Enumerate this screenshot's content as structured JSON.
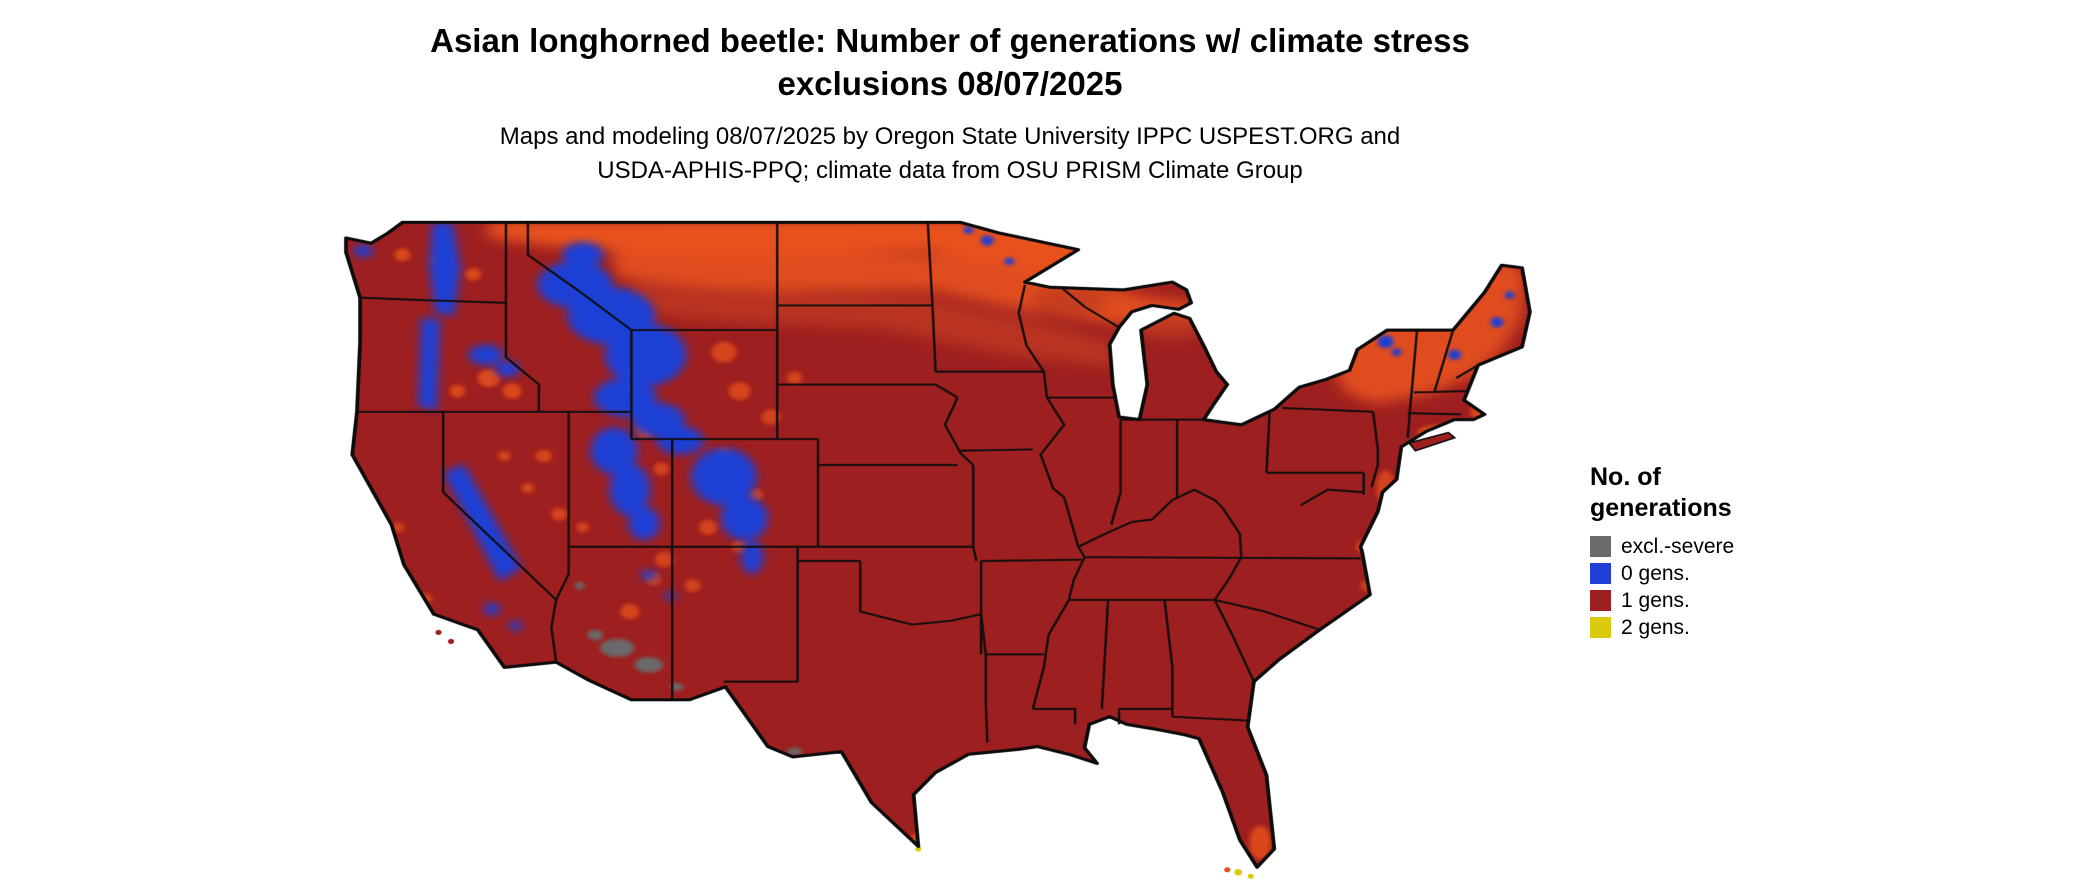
{
  "title": {
    "line1": "Asian longhorned beetle: Number of generations w/ climate stress",
    "line2": "exclusions 08/07/2025"
  },
  "subtitle": {
    "line1": "Maps and modeling 08/07/2025 by Oregon State University IPPC USPEST.ORG and",
    "line2": "USDA-APHIS-PPQ; climate data from OSU PRISM Climate Group"
  },
  "legend": {
    "title_line1": "No. of",
    "title_line2": "generations",
    "items": [
      {
        "label": "excl.-severe",
        "color": "#6a6a6a"
      },
      {
        "label": "0 gens.",
        "color": "#1f3fd6"
      },
      {
        "label": "1 gens.",
        "color": "#9e1f1f"
      },
      {
        "label": "2 gens.",
        "color": "#d9ca10"
      }
    ]
  },
  "map": {
    "name": "continental-us-generations-map",
    "regions_summary": "Most of the continental US shaded dark red (1 generation); large blue areas (0 generations) over the Cascades, Sierra Nevada, Idaho, western Montana, Wyoming, Utah and Colorado Rockies; orange transitional shading across the northern plains, upper Great Lakes and northern New England; small gray exclusion patches in southern Arizona; tiny yellow (2 generations) spots near the Florida Keys and south Texas"
  },
  "palette": {
    "base": "#9e1f1f",
    "orange": "#e8511c",
    "orangeDark": "#bf3a1e",
    "blue": "#1f3fd6",
    "gray": "#6a6a6a",
    "yellow": "#d9ca10",
    "border": "#0d0d0d",
    "background": "#ffffff"
  }
}
